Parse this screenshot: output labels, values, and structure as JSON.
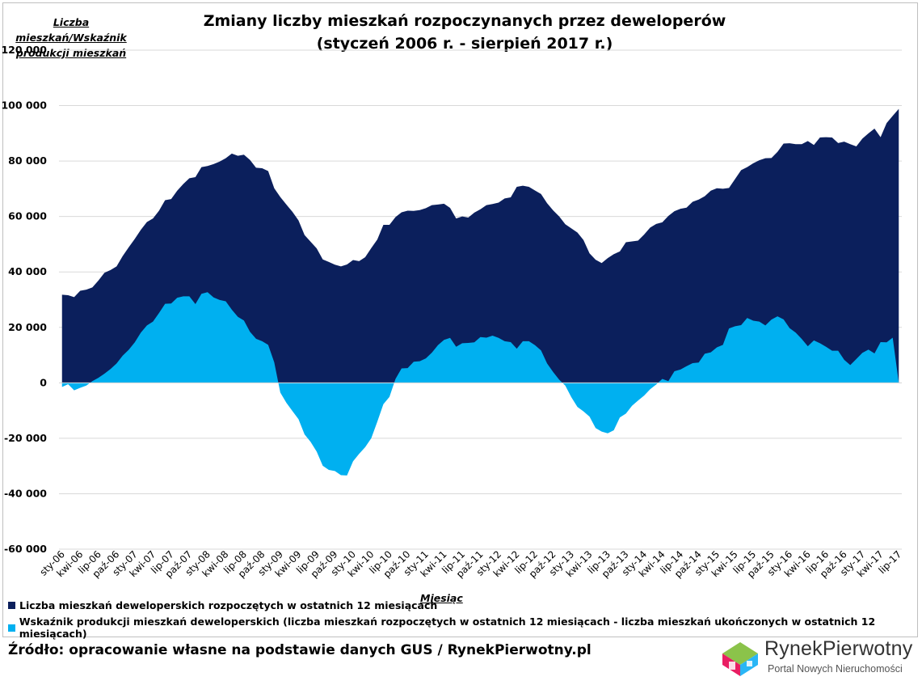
{
  "chart_data": {
    "type": "area",
    "title": "Zmiany liczby mieszkań rozpoczynanych przez deweloperów",
    "subtitle": "(styczeń 2006 r. - sierpień 2017 r.)",
    "ylabel": "Liczba mieszkań/Wskaźnik produkcji mieszkań",
    "xlabel": "Miesiąc",
    "ylim": [
      -60000,
      120000
    ],
    "yticks": [
      120000,
      100000,
      80000,
      60000,
      40000,
      20000,
      0,
      -20000,
      -40000,
      -60000
    ],
    "ytick_labels": [
      "120 000",
      "100 000",
      "80 000",
      "60 000",
      "40 000",
      "20 000",
      "0",
      "-20 000",
      "-40 000",
      "-60 000"
    ],
    "xtick_labels": [
      "sty-06",
      "kwi-06",
      "lip-06",
      "paź-06",
      "sty-07",
      "kwi-07",
      "lip-07",
      "paź-07",
      "sty-08",
      "kwi-08",
      "lip-08",
      "paź-08",
      "sty-09",
      "kwi-09",
      "lip-09",
      "paź-09",
      "sty-10",
      "kwi-10",
      "lip-10",
      "paź-10",
      "sty-11",
      "kwi-11",
      "lip-11",
      "paź-11",
      "sty-12",
      "kwi-12",
      "lip-12",
      "paź-12",
      "sty-13",
      "kwi-13",
      "lip-13",
      "paź-13",
      "sty-14",
      "kwi-14",
      "lip-14",
      "paź-14",
      "sty-15",
      "kwi-15",
      "lip-15",
      "paź-15",
      "sty-16",
      "kwi-16",
      "lip-16",
      "paź-16",
      "sty-17",
      "kwi-17",
      "lip-17"
    ],
    "grid": true,
    "legend_position": "bottom",
    "series": [
      {
        "name": "Liczba mieszkań deweloperskich rozpoczętych w ostatnich 12 miesiącach",
        "color": "#0b1f5c",
        "values": [
          31800,
          31600,
          30900,
          33200,
          33600,
          34400,
          36900,
          39700,
          40700,
          42000,
          45700,
          48900,
          51900,
          55200,
          58000,
          59300,
          62100,
          65900,
          66300,
          69300,
          71700,
          73800,
          74200,
          77800,
          78200,
          78900,
          79800,
          81000,
          82700,
          81900,
          82300,
          80400,
          77600,
          77400,
          76400,
          70200,
          67000,
          64300,
          61700,
          58600,
          53300,
          50900,
          48500,
          44500,
          43600,
          42600,
          42000,
          42700,
          44300,
          43900,
          45300,
          48600,
          51700,
          57000,
          57000,
          59800,
          61500,
          62100,
          62000,
          62300,
          63000,
          64100,
          64300,
          64600,
          63100,
          59300,
          60000,
          59600,
          61400,
          62600,
          64100,
          64500,
          65000,
          66500,
          66900,
          70700,
          71100,
          70700,
          69400,
          68100,
          64800,
          62200,
          60000,
          57200,
          55700,
          54200,
          51500,
          46700,
          44400,
          43200,
          45000,
          46400,
          47400,
          50700,
          51000,
          51300,
          53500,
          56000,
          57300,
          57900,
          60200,
          61900,
          62800,
          63200,
          65300,
          66100,
          67300,
          69300,
          70200,
          70000,
          70300,
          73500,
          76700,
          77800,
          79200,
          80300,
          81000,
          81100,
          83300,
          86300,
          86400,
          86100,
          86100,
          87200,
          85800,
          88500,
          88600,
          88500,
          86500,
          87000,
          86100,
          85300,
          88100,
          90000,
          91700,
          88600,
          93700,
          96300,
          98800
        ]
      },
      {
        "name": "Wskaźnik produkcji mieszkań deweloperskich (liczba mieszkań rozpoczętych w ostatnich 12 miesiącach - liczba mieszkań ukończonych w ostatnich 12 miesiącach)",
        "color": "#00b0f0",
        "values": [
          -1500,
          -500,
          -2700,
          -1800,
          -1000,
          600,
          1800,
          3300,
          5000,
          7000,
          9800,
          11900,
          14600,
          18100,
          20700,
          22100,
          25200,
          28500,
          28600,
          30700,
          31200,
          31200,
          28400,
          32100,
          32700,
          30800,
          29900,
          29400,
          26400,
          23800,
          22500,
          18400,
          15900,
          15000,
          13700,
          7400,
          -3500,
          -7200,
          -10200,
          -13100,
          -18600,
          -21300,
          -24800,
          -29900,
          -31400,
          -31800,
          -33300,
          -33400,
          -28300,
          -25600,
          -23200,
          -20000,
          -14000,
          -7700,
          -5100,
          1400,
          5200,
          5300,
          7600,
          7800,
          8800,
          10900,
          13600,
          15500,
          16200,
          13000,
          14300,
          14400,
          14600,
          16500,
          16300,
          17000,
          16200,
          15000,
          14700,
          12300,
          15000,
          15000,
          13600,
          11700,
          7000,
          3900,
          1100,
          -1000,
          -5200,
          -8700,
          -10300,
          -12200,
          -16300,
          -17600,
          -18200,
          -17100,
          -12500,
          -11100,
          -8300,
          -6400,
          -4600,
          -2300,
          -600,
          1400,
          600,
          4200,
          4800,
          6000,
          7100,
          7300,
          10500,
          11000,
          12800,
          13700,
          19600,
          20400,
          20800,
          23400,
          22400,
          22100,
          20700,
          22800,
          24000,
          22900,
          19700,
          18100,
          15800,
          13200,
          15300,
          14300,
          13000,
          11600,
          11600,
          8300,
          6400,
          8600,
          10800,
          12000,
          10600,
          14700,
          14600,
          16300
        ]
      }
    ]
  },
  "source_text": "Źródło: opracowanie własne na podstawie danych GUS / RynekPierwotny.pl",
  "logo": {
    "name": "RynekPierwotny",
    "tagline": "Portal Nowych Nieruchomości"
  }
}
